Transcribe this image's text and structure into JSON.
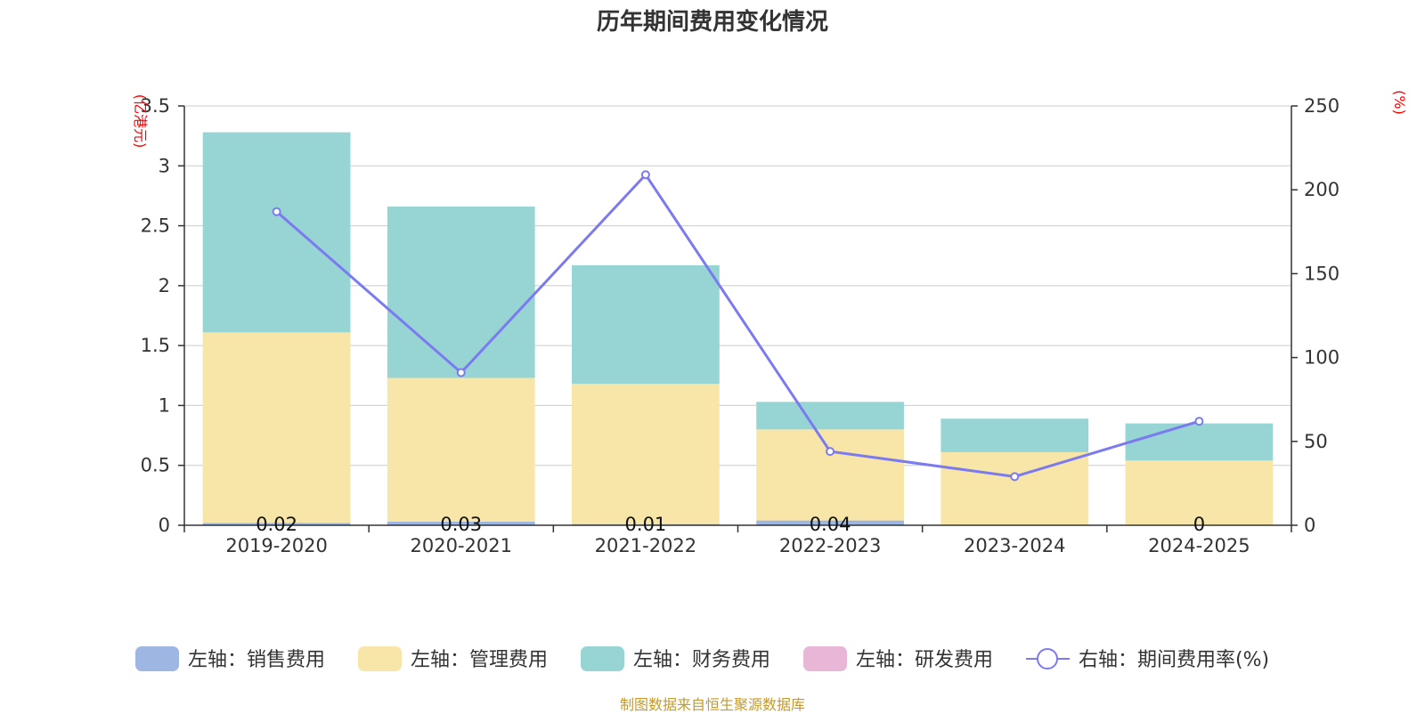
{
  "title": "历年期间费用变化情况",
  "footer": "制图数据来自恒生聚源数据库",
  "chart_data": {
    "type": "bar",
    "stacked": true,
    "categories": [
      "2019-2020",
      "2020-2021",
      "2021-2022",
      "2022-2023",
      "2023-2024",
      "2024-2025"
    ],
    "left_axis": {
      "unit": "(亿港元)",
      "ylim": [
        0,
        3.5
      ],
      "ticks": [
        0,
        0.5,
        1,
        1.5,
        2,
        2.5,
        3,
        3.5
      ],
      "tick_labels": [
        "0",
        "0.5",
        "1",
        "1.5",
        "2",
        "2.5",
        "3",
        "3.5"
      ]
    },
    "right_axis": {
      "unit": "(%)",
      "ylim": [
        0,
        250
      ],
      "ticks": [
        0,
        50,
        100,
        150,
        200,
        250
      ],
      "tick_labels": [
        "0",
        "50",
        "100",
        "150",
        "200",
        "250"
      ]
    },
    "series": [
      {
        "name": "左轴：销售费用",
        "axis": "left",
        "kind": "bar",
        "color": "#9db6e2",
        "values": [
          0.02,
          0.03,
          0.01,
          0.04,
          0,
          0
        ]
      },
      {
        "name": "左轴：管理费用",
        "axis": "left",
        "kind": "bar",
        "color": "#f7e6a8",
        "values": [
          1.59,
          1.2,
          1.17,
          0.76,
          0.61,
          0.54
        ]
      },
      {
        "name": "左轴：财务费用",
        "axis": "left",
        "kind": "bar",
        "color": "#97d4d4",
        "values": [
          1.67,
          1.43,
          0.99,
          0.23,
          0.28,
          0.31
        ]
      },
      {
        "name": "左轴：研发费用",
        "axis": "left",
        "kind": "bar",
        "color": "#e8b7d8",
        "values": [
          0,
          0,
          0,
          0,
          0,
          0
        ]
      },
      {
        "name": "右轴：期间费用率(%)",
        "axis": "right",
        "kind": "line",
        "color": "#7b7bef",
        "values": [
          187,
          91,
          209,
          44,
          29,
          62
        ]
      }
    ],
    "bar_labels": [
      "0.02",
      "0.03",
      "0.01",
      "0.04",
      "",
      "0"
    ]
  }
}
